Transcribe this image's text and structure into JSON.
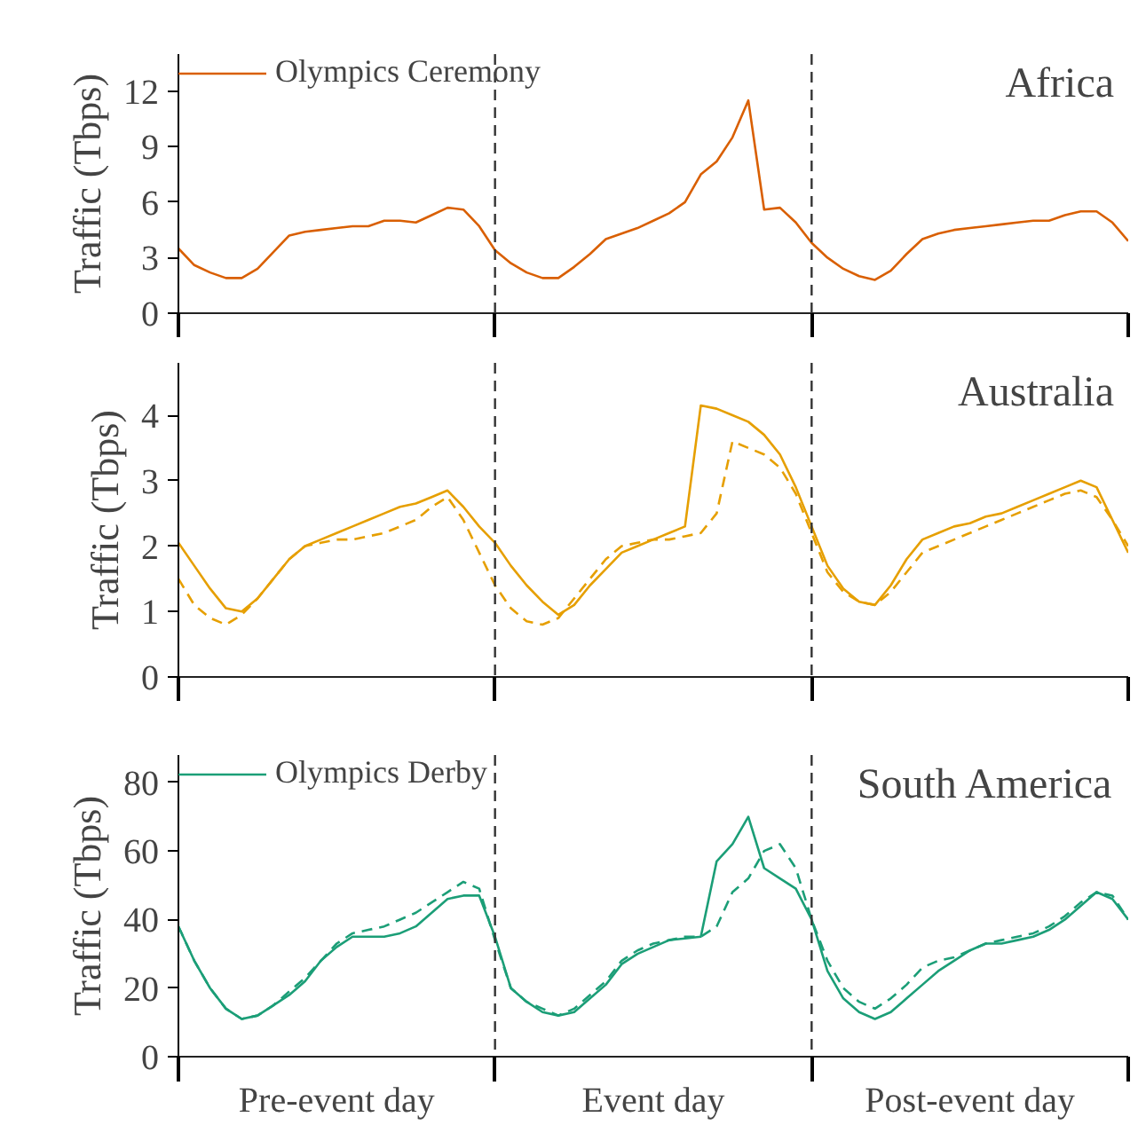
{
  "chart_data": [
    {
      "type": "line",
      "title": "Africa",
      "ylabel": "Traffic (Tbps)",
      "categories": [
        null,
        null,
        null,
        null,
        null,
        null,
        null,
        null,
        null,
        null,
        null,
        null,
        null,
        null,
        null,
        null,
        null,
        null,
        null,
        null,
        null,
        null,
        null,
        null,
        null,
        null,
        null,
        null,
        null,
        null,
        null,
        null,
        null,
        null,
        null,
        null,
        null,
        null,
        null,
        null,
        null,
        null,
        null,
        null,
        null,
        null,
        null,
        null,
        null,
        null,
        null,
        null,
        null,
        null,
        null,
        null,
        null,
        null,
        null,
        null,
        null
      ],
      "ylim": [
        0,
        14
      ],
      "yticks": [
        0,
        3,
        6,
        9,
        12
      ],
      "tick_labels": "y",
      "legend": "top left",
      "series": [
        {
          "name": "Olympics Ceremony",
          "color": "#d95f02",
          "line_style": "solid",
          "values": [
            3.5,
            2.6,
            2.2,
            1.9,
            1.9,
            2.4,
            3.3,
            4.2,
            4.4,
            4.5,
            4.6,
            4.7,
            4.7,
            5.0,
            5.0,
            4.9,
            5.3,
            5.7,
            5.6,
            4.7,
            3.4,
            2.7,
            2.2,
            1.9,
            1.9,
            2.5,
            3.2,
            4.0,
            4.3,
            4.6,
            5.0,
            5.4,
            6.0,
            7.5,
            8.2,
            9.5,
            11.5,
            5.6,
            5.7,
            4.9,
            3.8,
            3.0,
            2.4,
            2.0,
            1.8,
            2.3,
            3.2,
            4.0,
            4.3,
            4.5,
            4.6,
            4.7,
            4.8,
            4.9,
            5.0,
            5.0,
            5.3,
            5.5,
            5.5,
            4.9,
            3.9
          ]
        }
      ]
    },
    {
      "type": "line",
      "title": "Australia",
      "ylabel": "Traffic (Tbps)",
      "categories": [
        null,
        null,
        null,
        null,
        null,
        null,
        null,
        null,
        null,
        null,
        null,
        null,
        null,
        null,
        null,
        null,
        null,
        null,
        null,
        null,
        null,
        null,
        null,
        null,
        null,
        null,
        null,
        null,
        null,
        null,
        null,
        null,
        null,
        null,
        null,
        null,
        null,
        null,
        null,
        null,
        null,
        null,
        null,
        null,
        null,
        null,
        null,
        null,
        null,
        null,
        null,
        null,
        null,
        null,
        null,
        null,
        null,
        null,
        null,
        null,
        null
      ],
      "ylim": [
        0,
        4.8
      ],
      "yticks": [
        0,
        1,
        2,
        3,
        4
      ],
      "tick_labels": "y",
      "series": [
        {
          "color": "#e69f00",
          "line_style": "solid",
          "values": [
            2.05,
            1.7,
            1.35,
            1.05,
            1.0,
            1.2,
            1.5,
            1.8,
            2.0,
            2.1,
            2.2,
            2.3,
            2.4,
            2.5,
            2.6,
            2.65,
            2.75,
            2.85,
            2.6,
            2.3,
            2.05,
            1.7,
            1.4,
            1.15,
            0.95,
            1.1,
            1.4,
            1.65,
            1.9,
            2.0,
            2.1,
            2.2,
            2.3,
            4.15,
            4.1,
            4.0,
            3.9,
            3.7,
            3.4,
            2.9,
            2.3,
            1.7,
            1.35,
            1.15,
            1.1,
            1.4,
            1.8,
            2.1,
            2.2,
            2.3,
            2.35,
            2.45,
            2.5,
            2.6,
            2.7,
            2.8,
            2.9,
            3.0,
            2.9,
            2.4,
            1.9
          ]
        },
        {
          "color": "#e69f00",
          "line_style": "dashed",
          "values": [
            1.5,
            1.1,
            0.9,
            0.8,
            0.95,
            1.2,
            1.5,
            1.8,
            2.0,
            2.05,
            2.1,
            2.1,
            2.15,
            2.2,
            2.3,
            2.4,
            2.6,
            2.75,
            2.4,
            1.9,
            1.4,
            1.05,
            0.85,
            0.8,
            0.9,
            1.2,
            1.5,
            1.8,
            2.0,
            2.05,
            2.1,
            2.1,
            2.15,
            2.2,
            2.5,
            3.6,
            3.5,
            3.4,
            3.2,
            2.8,
            2.2,
            1.6,
            1.3,
            1.15,
            1.1,
            1.3,
            1.6,
            1.9,
            2.0,
            2.1,
            2.2,
            2.3,
            2.4,
            2.5,
            2.6,
            2.7,
            2.8,
            2.85,
            2.75,
            2.4,
            2.0
          ]
        }
      ]
    },
    {
      "type": "line",
      "title": "South America",
      "ylabel": "Traffic (Tbps)",
      "categories": [
        null,
        null,
        null,
        null,
        null,
        null,
        null,
        null,
        null,
        null,
        "Pre-event day",
        null,
        null,
        null,
        null,
        null,
        null,
        null,
        null,
        null,
        null,
        null,
        null,
        null,
        null,
        null,
        null,
        null,
        null,
        null,
        "Event day",
        null,
        null,
        null,
        null,
        null,
        null,
        null,
        null,
        null,
        null,
        null,
        null,
        null,
        null,
        null,
        null,
        null,
        null,
        null,
        "Post-event day",
        null,
        null,
        null,
        null,
        null,
        null,
        null,
        null,
        null,
        null
      ],
      "ylim": [
        0,
        88
      ],
      "yticks": [
        0,
        20,
        40,
        60,
        80
      ],
      "legend": "top left",
      "series": [
        {
          "name": "Olympics Derby",
          "color": "#1b9e77",
          "line_style": "solid",
          "values": [
            38,
            28,
            20,
            14,
            11,
            12,
            15,
            18,
            22,
            28,
            32,
            35,
            35,
            35,
            36,
            38,
            42,
            46,
            47,
            47,
            35,
            20,
            16,
            13,
            12,
            13,
            17,
            21,
            27,
            30,
            32,
            34,
            34.5,
            35,
            57,
            62,
            70,
            55,
            52,
            49,
            40,
            25,
            17,
            13,
            11,
            13,
            17,
            21,
            25,
            28,
            31,
            33,
            33,
            34,
            35,
            37,
            40,
            44,
            48,
            46,
            40
          ]
        },
        {
          "color": "#1b9e77",
          "line_style": "dashed",
          "values": [
            38,
            28,
            20,
            14,
            11,
            12,
            15,
            19,
            23,
            28,
            33,
            36,
            37,
            38,
            40,
            42,
            45,
            48,
            51,
            49,
            34,
            20,
            16,
            14,
            12,
            14,
            18,
            22,
            28,
            31,
            33,
            34,
            35,
            35,
            38,
            48,
            52,
            60,
            62,
            55,
            40,
            28,
            20,
            16,
            14,
            17,
            21,
            26,
            28,
            29,
            31,
            33,
            34,
            35,
            36,
            38,
            41,
            45,
            48,
            47,
            40
          ]
        }
      ]
    }
  ]
}
